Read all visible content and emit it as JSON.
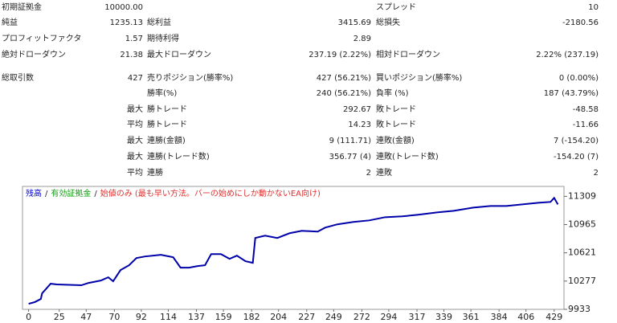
{
  "table": {
    "rows": [
      {
        "l1": "初期証拠金",
        "v1": "10000.00",
        "l3": "スプレッド",
        "v3": "10"
      },
      {
        "l1": "純益",
        "v1": "1235.13",
        "l2": "総利益",
        "v2": "3415.69",
        "l3": "総損失",
        "v3": "-2180.56"
      },
      {
        "l1": "プロフィットファクタ",
        "v1": "1.57",
        "l2": "期待利得",
        "v2": "2.89"
      },
      {
        "l1": "絶対ドローダウン",
        "v1": "21.38",
        "l2": "最大ドローダウン",
        "v2": "237.19 (2.22%)",
        "l3": "相対ドローダウン",
        "v3": "2.22% (237.19)"
      },
      {
        "l1": "総取引数",
        "v1": "427",
        "l2": "売りポジション(勝率%)",
        "v2": "427 (56.21%)",
        "l3": "買いポジション(勝率%)",
        "v3": "0 (0.00%)"
      },
      {
        "l2": "勝率(%)",
        "v2": "240 (56.21%)",
        "l3": "負率 (%)",
        "v3": "187 (43.79%)"
      },
      {
        "v1": "最大",
        "l2": "勝トレード",
        "v2": "292.67",
        "l3": "敗トレード",
        "v3": "-48.58"
      },
      {
        "v1": "平均",
        "l2": "勝トレード",
        "v2": "14.23",
        "l3": "敗トレード",
        "v3": "-11.66"
      },
      {
        "v1": "最大",
        "l2": "連勝(金額)",
        "v2": "9 (111.71)",
        "l3": "連敗(金額)",
        "v3": "7 (-154.20)"
      },
      {
        "v1": "最大",
        "l2": "連勝(トレード数)",
        "v2": "356.77 (4)",
        "l3": "連敗(トレード数)",
        "v3": "-154.20 (7)"
      },
      {
        "v1": "平均",
        "l2": "連勝",
        "v2": "2",
        "l3": "連敗",
        "v3": "2"
      }
    ]
  },
  "chart_data": {
    "type": "line",
    "legend": [
      {
        "text": "残高",
        "color": "#0000cc"
      },
      {
        "text": "有効証拠金",
        "color": "#1a9a1a"
      },
      {
        "text": "始値のみ (最も早い方法。バーの始めにしか動かないEA向け)",
        "color": "#e03030"
      }
    ],
    "legend_separator": "/",
    "x": [
      0,
      5,
      10,
      11,
      18,
      23,
      43,
      49,
      59,
      65,
      69,
      75,
      82,
      88,
      95,
      108,
      118,
      124,
      131,
      138,
      144,
      149,
      157,
      164,
      170,
      177,
      183,
      185,
      193,
      203,
      213,
      223,
      236,
      242,
      252,
      265,
      278,
      291,
      305,
      318,
      334,
      347,
      363,
      377,
      390,
      403,
      416,
      426,
      429,
      432
    ],
    "series": [
      {
        "name": "残高",
        "color": "#0000aa",
        "values": [
          10001,
          10021,
          10060,
          10128,
          10245,
          10236,
          10226,
          10255,
          10284,
          10323,
          10275,
          10411,
          10470,
          10558,
          10577,
          10597,
          10567,
          10441,
          10441,
          10460,
          10470,
          10606,
          10606,
          10548,
          10587,
          10519,
          10499,
          10802,
          10831,
          10802,
          10860,
          10889,
          10880,
          10928,
          10968,
          10997,
          11016,
          11055,
          11065,
          11085,
          11114,
          11133,
          11172,
          11192,
          11192,
          11211,
          11231,
          11241,
          11290,
          11211
        ]
      }
    ],
    "xlim": [
      -5,
      437
    ],
    "ylim": [
      9933,
      11430
    ],
    "xticks": [
      0,
      25,
      47,
      70,
      92,
      114,
      137,
      159,
      182,
      204,
      227,
      249,
      272,
      294,
      317,
      339,
      361,
      384,
      406,
      429
    ],
    "yticks": [
      9933,
      10277,
      10621,
      10965,
      11309
    ]
  }
}
